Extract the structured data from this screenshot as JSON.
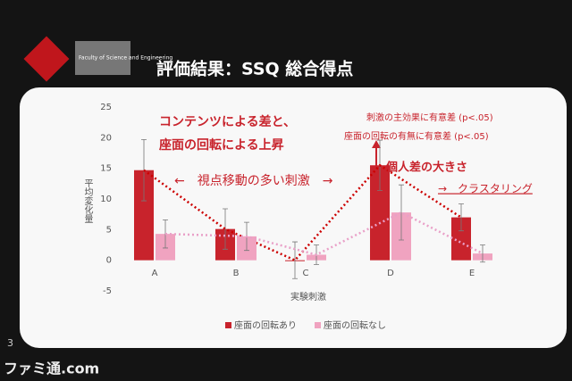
{
  "slide": {
    "title": "評価結果：SSQ 総合得点",
    "logo_text": "Faculty of Science and Engineering",
    "page_number": "3",
    "watermark": "ファミ通.com"
  },
  "chart_data": {
    "type": "bar",
    "categories": [
      "A",
      "B",
      "C",
      "D",
      "E"
    ],
    "series": [
      {
        "name": "座面の回転あり",
        "color": "#c8232c",
        "values": [
          14.7,
          5.1,
          0.0,
          15.5,
          7.0
        ],
        "errors": [
          5.0,
          3.3,
          3.0,
          4.1,
          2.2
        ]
      },
      {
        "name": "座面の回転なし",
        "color": "#f0a3c0",
        "values": [
          4.3,
          3.9,
          0.9,
          7.8,
          1.1
        ],
        "errors": [
          2.3,
          2.3,
          1.6,
          4.5,
          1.4
        ]
      }
    ],
    "ylim": [
      -5,
      25
    ],
    "yticks": [
      -5,
      0,
      5,
      10,
      15,
      20,
      25
    ],
    "y_label": "平均変化量",
    "x_label": "実験刺激",
    "trend_lines": true,
    "legend": "bottom",
    "annotations": [
      "コンテンツによる差と、",
      "座面の回転による上昇",
      "←　視点移動の多い刺激　→",
      "刺激の主効果に有意差 (p<.05)",
      "座面の回転の有無に有意差 (p<.05)",
      "個人差の大きさ",
      "→　クラスタリング"
    ]
  }
}
